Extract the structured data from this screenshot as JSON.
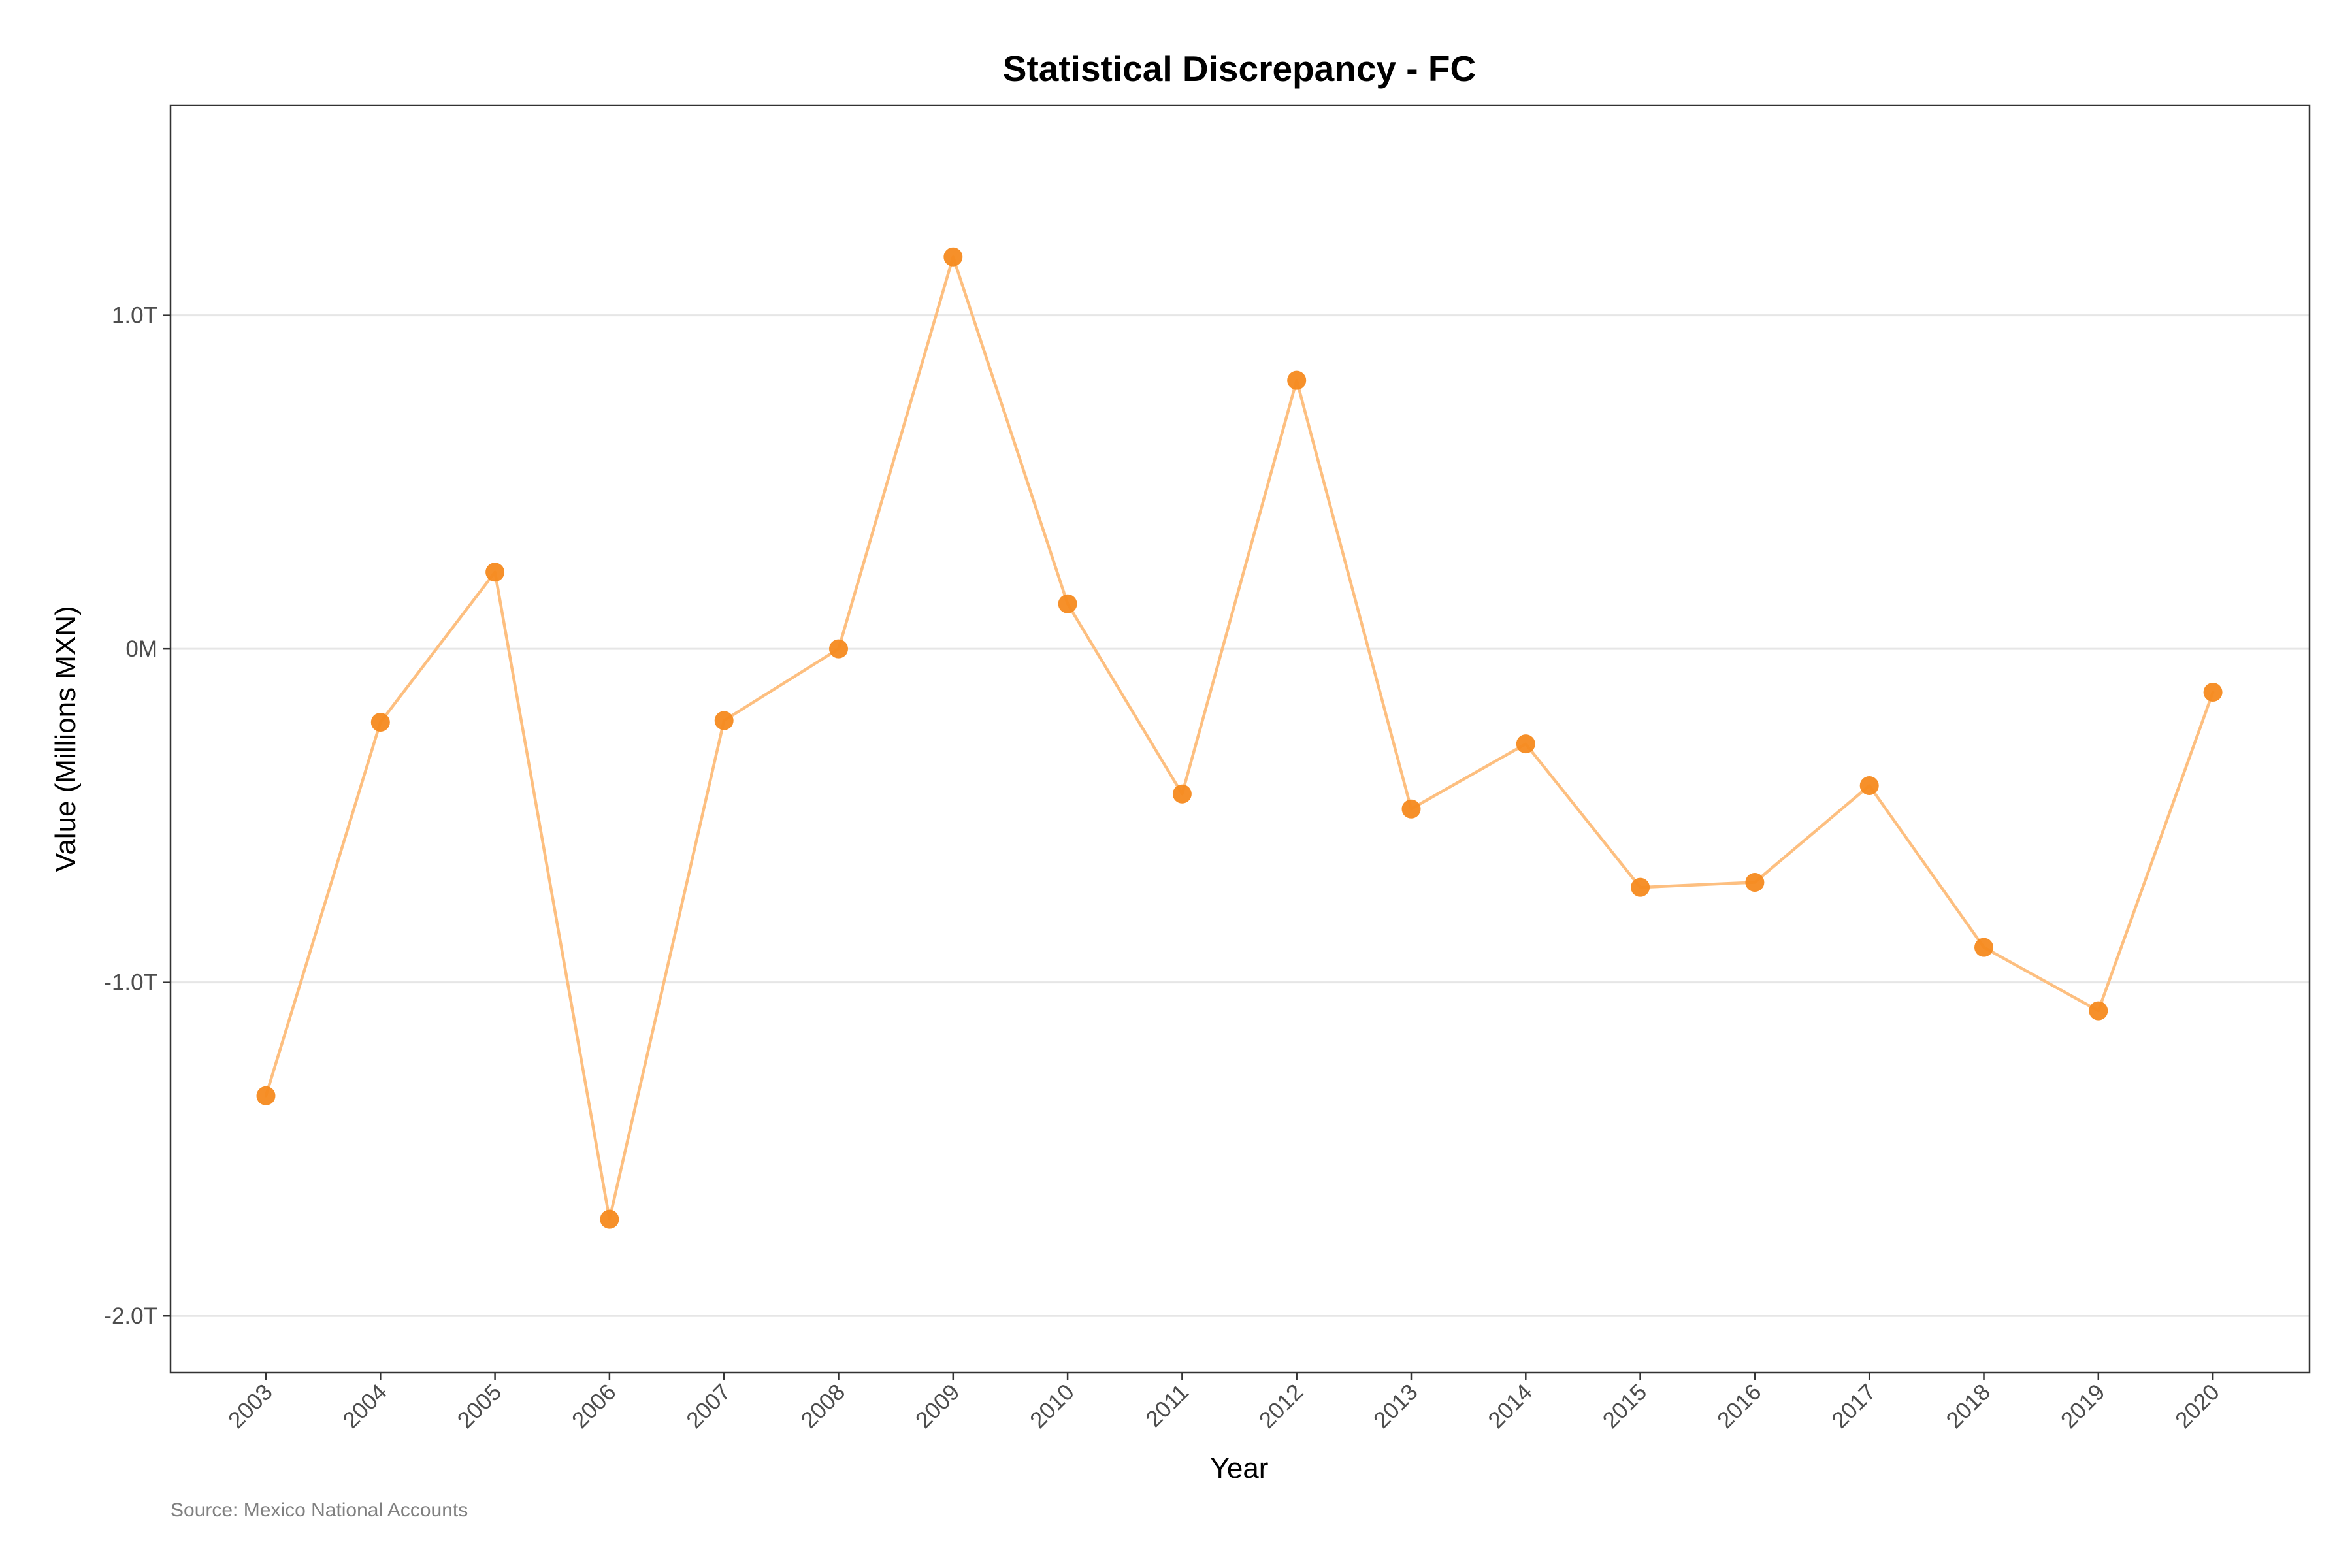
{
  "chart_data": {
    "type": "line",
    "title": "Statistical Discrepancy - FC",
    "xlabel": "Year",
    "ylabel": "Value (Millions MXN)",
    "caption": "Source: Mexico National Accounts",
    "x": [
      "2003",
      "2004",
      "2005",
      "2006",
      "2007",
      "2008",
      "2009",
      "2010",
      "2011",
      "2012",
      "2013",
      "2014",
      "2015",
      "2016",
      "2017",
      "2018",
      "2019",
      "2020"
    ],
    "series": [
      {
        "values": [
          -1.34,
          -0.22,
          0.23,
          -1.71,
          -0.215,
          0.0,
          1.175,
          0.135,
          -0.435,
          0.805,
          -0.48,
          -0.285,
          -0.715,
          -0.7,
          -0.41,
          -0.895,
          -1.085,
          -0.13
        ],
        "unit": "trillion MXN",
        "line_color": "#FDBF80",
        "point_color": "#F58A1F"
      }
    ],
    "y_ticks": [
      {
        "value": 1.0,
        "label": "1.0T"
      },
      {
        "value": 0.0,
        "label": "0M"
      },
      {
        "value": -1.0,
        "label": "-1.0T"
      },
      {
        "value": -2.0,
        "label": "-2.0T"
      }
    ],
    "ylim": [
      -2.17,
      1.63
    ],
    "grid": "horizontal major",
    "legend": "none",
    "x_tick_rotation": "45 degrees"
  }
}
